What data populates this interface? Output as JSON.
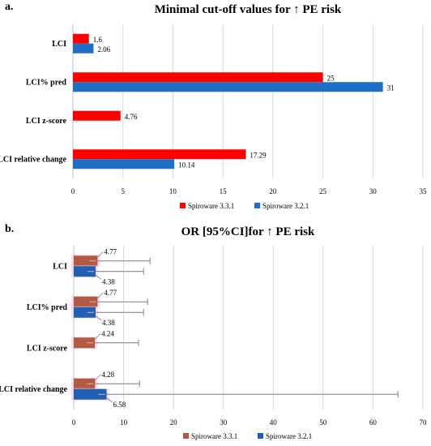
{
  "panels": [
    {
      "letter": "a.",
      "title": "Minimal cut-off values for ↑ PE risk",
      "chart_data": {
        "type": "bar",
        "orientation": "horizontal",
        "categories": [
          "LCI",
          "LCI% pred",
          "LCI z-score",
          "LCI relative change"
        ],
        "series": [
          {
            "name": "Spiroware 3.3.1",
            "color": "#ff0000",
            "values": [
              1.6,
              25,
              4.76,
              17.29
            ],
            "labels": [
              "1.6",
              "25",
              "4.76",
              "17.29"
            ]
          },
          {
            "name": "Spiroware 3.2.1",
            "color": "#1f6fc4",
            "values": [
              2.06,
              31,
              null,
              10.14
            ],
            "labels": [
              "2.06",
              "31",
              "",
              "10.14"
            ]
          }
        ],
        "xlim": [
          0,
          35
        ],
        "xticks": [
          0,
          5,
          10,
          15,
          20,
          25,
          30,
          35
        ],
        "grid": true,
        "legend": "bottom"
      }
    },
    {
      "letter": "b.",
      "title": "OR [95%CI]for ↑ PE risk",
      "chart_data": {
        "type": "bar",
        "orientation": "horizontal",
        "error_bars": true,
        "categories": [
          "LCI",
          "LCI% pred",
          "LCI z-score",
          "LCI relative change"
        ],
        "series": [
          {
            "name": "Spiroware 3.3.1",
            "color": "#b35a44",
            "values": [
              4.77,
              4.77,
              4.24,
              4.28
            ],
            "ci_high": [
              15.3,
              14.8,
              13.0,
              13.2
            ],
            "labels": [
              "4.77",
              "4.77",
              "4.24",
              "4.28"
            ]
          },
          {
            "name": "Spiroware 3.2.1",
            "color": "#1f5fb4",
            "values": [
              4.38,
              4.38,
              null,
              6.58
            ],
            "ci_high": [
              14.0,
              14.0,
              null,
              65.0
            ],
            "labels": [
              "4.38",
              "4.38",
              "",
              "6.58"
            ]
          }
        ],
        "xlim": [
          0,
          70
        ],
        "xticks": [
          0,
          10,
          20,
          30,
          40,
          50,
          60,
          70
        ],
        "grid": true,
        "legend": "bottom"
      }
    }
  ]
}
